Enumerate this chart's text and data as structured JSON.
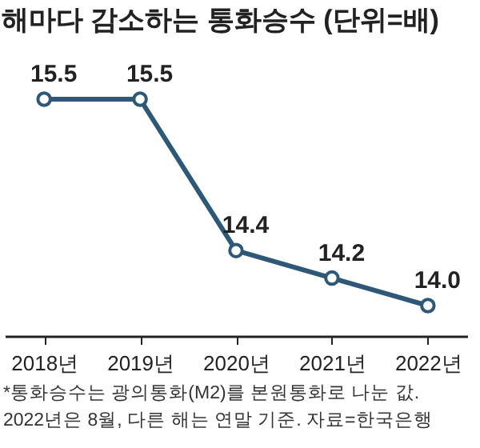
{
  "chart_data": {
    "type": "line",
    "title": "해마다 감소하는 통화승수 (단위=배)",
    "categories": [
      "2018년",
      "2019년",
      "2020년",
      "2021년",
      "2022년"
    ],
    "series": [
      {
        "color": "#2d5878",
        "values": [
          15.5,
          15.5,
          14.4,
          14.2,
          14.0
        ],
        "value_labels": [
          "15.5",
          "15.5",
          "14.4",
          "14.2",
          "14.0"
        ]
      }
    ],
    "tick_labels": "x",
    "grid": false,
    "marker": "circle",
    "line_style": "solid",
    "annotations": [
      "*통화승수는 광의통화(M2)를 본원통화로 나눈 값.",
      "2022년은 8월, 다른 해는 연말 기준. 자료=한국은행"
    ]
  }
}
